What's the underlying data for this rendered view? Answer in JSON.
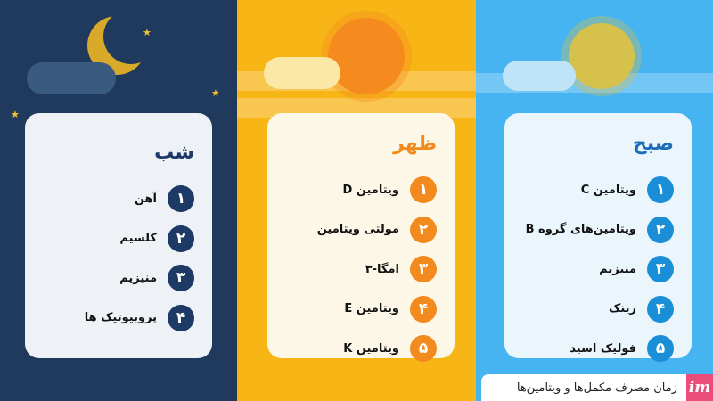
{
  "colors": {
    "night": "#1f3a5c",
    "noon": "#f7b516",
    "morning": "#46b4f0",
    "night_badge": "#1d3a66",
    "noon_badge": "#f28a1d",
    "morning_badge": "#1a8fd8",
    "brand": "#ea4c7b"
  },
  "night": {
    "title": "شب",
    "items": [
      {
        "num": "۱",
        "label": "آهن"
      },
      {
        "num": "۲",
        "label": "کلسیم"
      },
      {
        "num": "۳",
        "label": "منیزیم"
      },
      {
        "num": "۴",
        "label": "پروبیوتیک ها"
      }
    ]
  },
  "noon": {
    "title": "ظهر",
    "items": [
      {
        "num": "۱",
        "label": "ویتامین D"
      },
      {
        "num": "۲",
        "label": "مولتی ویتامین"
      },
      {
        "num": "۳",
        "label": "امگا-۳"
      },
      {
        "num": "۴",
        "label": "ویتامین E"
      },
      {
        "num": "۵",
        "label": "ویتامین K"
      }
    ]
  },
  "morning": {
    "title": "صبح",
    "items": [
      {
        "num": "۱",
        "label": "ویتامین C"
      },
      {
        "num": "۲",
        "label": "ویتامین‌های گروه B"
      },
      {
        "num": "۳",
        "label": "منیزیم"
      },
      {
        "num": "۴",
        "label": "زینک"
      },
      {
        "num": "۵",
        "label": "فولیک اسید"
      }
    ]
  },
  "footer": {
    "caption": "زمان مصرف مکمل‌ها و ویتامین‌ها",
    "logo": "im"
  }
}
